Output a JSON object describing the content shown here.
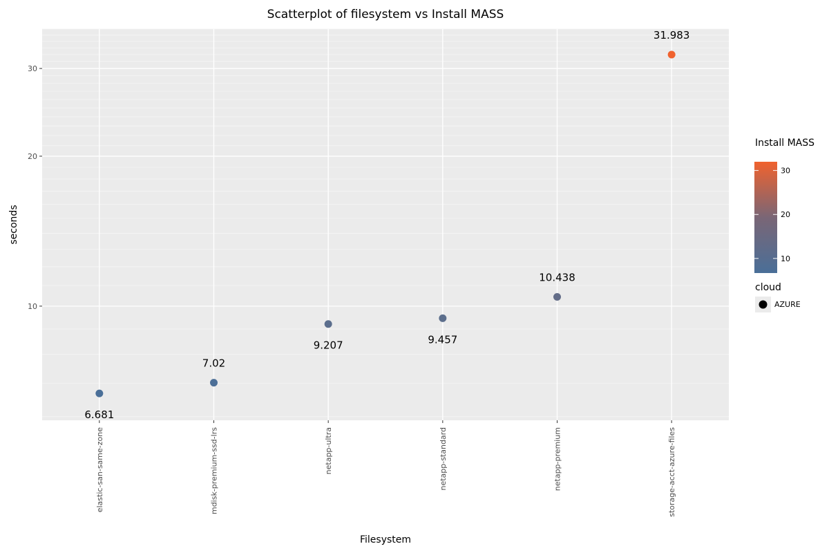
{
  "chart_data": {
    "type": "scatter",
    "title": "Scatterplot of filesystem vs Install MASS",
    "xlabel": "Filesystem",
    "ylabel": "seconds",
    "y_scale": "log",
    "ylim": [
      5.9,
      36
    ],
    "y_ticks": [
      10,
      20,
      30
    ],
    "grid": true,
    "categories": [
      "elastic-san-same-zone",
      "mdisk-premium-ssd-lrs",
      "netapp-ultra",
      "netapp-standard",
      "netapp-premium",
      "storage-acct-azure-files"
    ],
    "series": [
      {
        "name": "AZURE",
        "values": [
          6.681,
          7.02,
          9.207,
          9.457,
          10.438,
          31.983
        ],
        "labels": [
          "6.681",
          "7.02",
          "9.207",
          "9.457",
          "10.438",
          "31.983"
        ],
        "label_position": [
          "below",
          "above",
          "below",
          "below",
          "above",
          "above"
        ]
      }
    ],
    "colorbar": {
      "title": "Install MASS",
      "ticks": [
        10,
        20,
        30
      ],
      "range": [
        6.681,
        31.983
      ],
      "color_low": "#4a6f98",
      "color_high": "#f0622e"
    },
    "legend": {
      "title": "cloud",
      "entries": [
        "AZURE"
      ],
      "placement": "right"
    },
    "colors": {
      "panel_background": "#ebebeb",
      "gridline": "#ffffff"
    }
  }
}
